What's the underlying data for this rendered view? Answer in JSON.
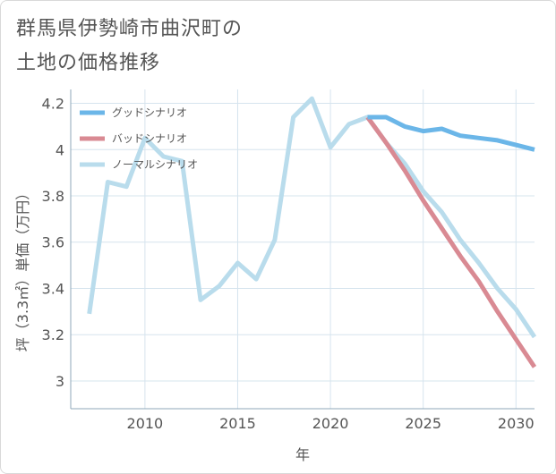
{
  "chart_data": {
    "type": "line",
    "title": [
      "群馬県伊勢崎市曲沢町の",
      "土地の価格推移"
    ],
    "xlabel": "年",
    "ylabel": "坪（3.3㎡）単価（万円）",
    "xlim": [
      2006,
      2031
    ],
    "ylim": [
      2.88,
      4.26
    ],
    "xticks": [
      2010,
      2015,
      2020,
      2025,
      2030
    ],
    "yticks": [
      3,
      3.2,
      3.4,
      3.6,
      3.8,
      4,
      4.2
    ],
    "ytick_labels": [
      "3",
      "3.2",
      "3.4",
      "3.6",
      "3.8",
      "4",
      "4.2"
    ],
    "grid": true,
    "legend_position": "top-left",
    "series": [
      {
        "name": "グッドシナリオ",
        "color": "#6bb6e8",
        "x": [
          2022,
          2023,
          2024,
          2025,
          2026,
          2027,
          2028,
          2029,
          2030,
          2031
        ],
        "values": [
          4.14,
          4.14,
          4.1,
          4.08,
          4.09,
          4.06,
          4.05,
          4.04,
          4.02,
          4.0
        ]
      },
      {
        "name": "バッドシナリオ",
        "color": "#d98a93",
        "x": [
          2022,
          2023,
          2024,
          2025,
          2026,
          2027,
          2028,
          2029,
          2030,
          2031
        ],
        "values": [
          4.14,
          4.03,
          3.91,
          3.78,
          3.66,
          3.54,
          3.43,
          3.3,
          3.18,
          3.06
        ]
      },
      {
        "name": "ノーマルシナリオ",
        "color": "#b9dcec",
        "x": [
          2007,
          2008,
          2009,
          2010,
          2011,
          2012,
          2013,
          2014,
          2015,
          2016,
          2017,
          2018,
          2019,
          2020,
          2021,
          2022,
          2023,
          2024,
          2025,
          2026,
          2027,
          2028,
          2029,
          2030,
          2031
        ],
        "values": [
          3.29,
          3.86,
          3.84,
          4.05,
          3.97,
          3.95,
          3.35,
          3.41,
          3.51,
          3.44,
          3.61,
          4.14,
          4.22,
          4.01,
          4.11,
          4.14,
          4.03,
          3.94,
          3.82,
          3.73,
          3.61,
          3.51,
          3.4,
          3.31,
          3.19
        ]
      }
    ]
  }
}
